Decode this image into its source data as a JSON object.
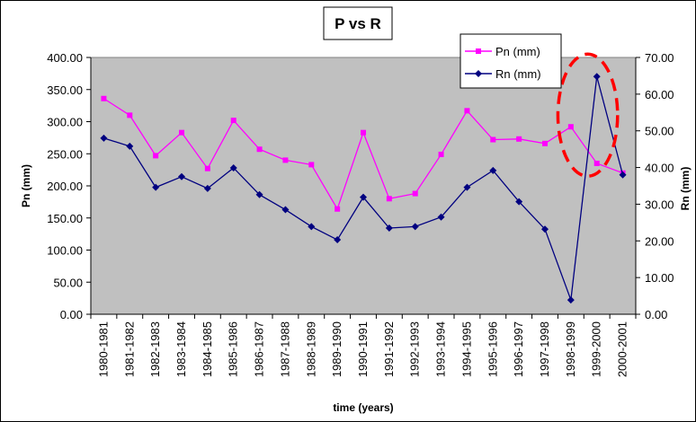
{
  "chart_data": {
    "type": "line",
    "title": "P vs R",
    "xlabel": "time (years)",
    "ylabel": "Pn (mm)",
    "y2label": "Rn (mm)",
    "ylim": [
      0,
      400
    ],
    "y2lim": [
      0,
      70
    ],
    "yticks": [
      "0.00",
      "50.00",
      "100.00",
      "150.00",
      "200.00",
      "250.00",
      "300.00",
      "350.00",
      "400.00"
    ],
    "y2ticks": [
      "0.00",
      "10.00",
      "20.00",
      "30.00",
      "40.00",
      "50.00",
      "60.00",
      "70.00"
    ],
    "categories": [
      "1980-1981",
      "1981-1982",
      "1982-1983",
      "1983-1984",
      "1984-1985",
      "1985-1986",
      "1986-1987",
      "1987-1988",
      "1988-1989",
      "1989-1990",
      "1990-1991",
      "1991-1992",
      "1992-1993",
      "1993-1994",
      "1994-1995",
      "1995-1996",
      "1996-1997",
      "1997-1998",
      "1998-1999",
      "1999-2000",
      "2000-2001"
    ],
    "series": [
      {
        "name": "Pn (mm)",
        "axis": "left",
        "color": "#ff00ff",
        "marker": "square",
        "values": [
          336,
          310,
          247,
          283,
          227,
          302,
          257,
          240,
          233,
          164,
          283,
          180,
          188,
          249,
          317,
          272,
          273,
          266,
          292,
          235,
          220
        ]
      },
      {
        "name": "Rn (mm)",
        "axis": "right",
        "color": "#000080",
        "marker": "diamond",
        "values": [
          48.0,
          45.8,
          34.6,
          37.5,
          34.3,
          39.9,
          32.6,
          28.5,
          23.9,
          20.3,
          31.9,
          23.5,
          23.9,
          26.5,
          34.6,
          39.2,
          30.7,
          23.2,
          3.9,
          64.8,
          38.0
        ]
      }
    ],
    "legend_position": "top-right",
    "grid": false,
    "plot_background": "#c0c0c0",
    "annotation": {
      "type": "dashed-ellipse",
      "color": "#ff0000",
      "around_category": "1999-2000"
    }
  }
}
